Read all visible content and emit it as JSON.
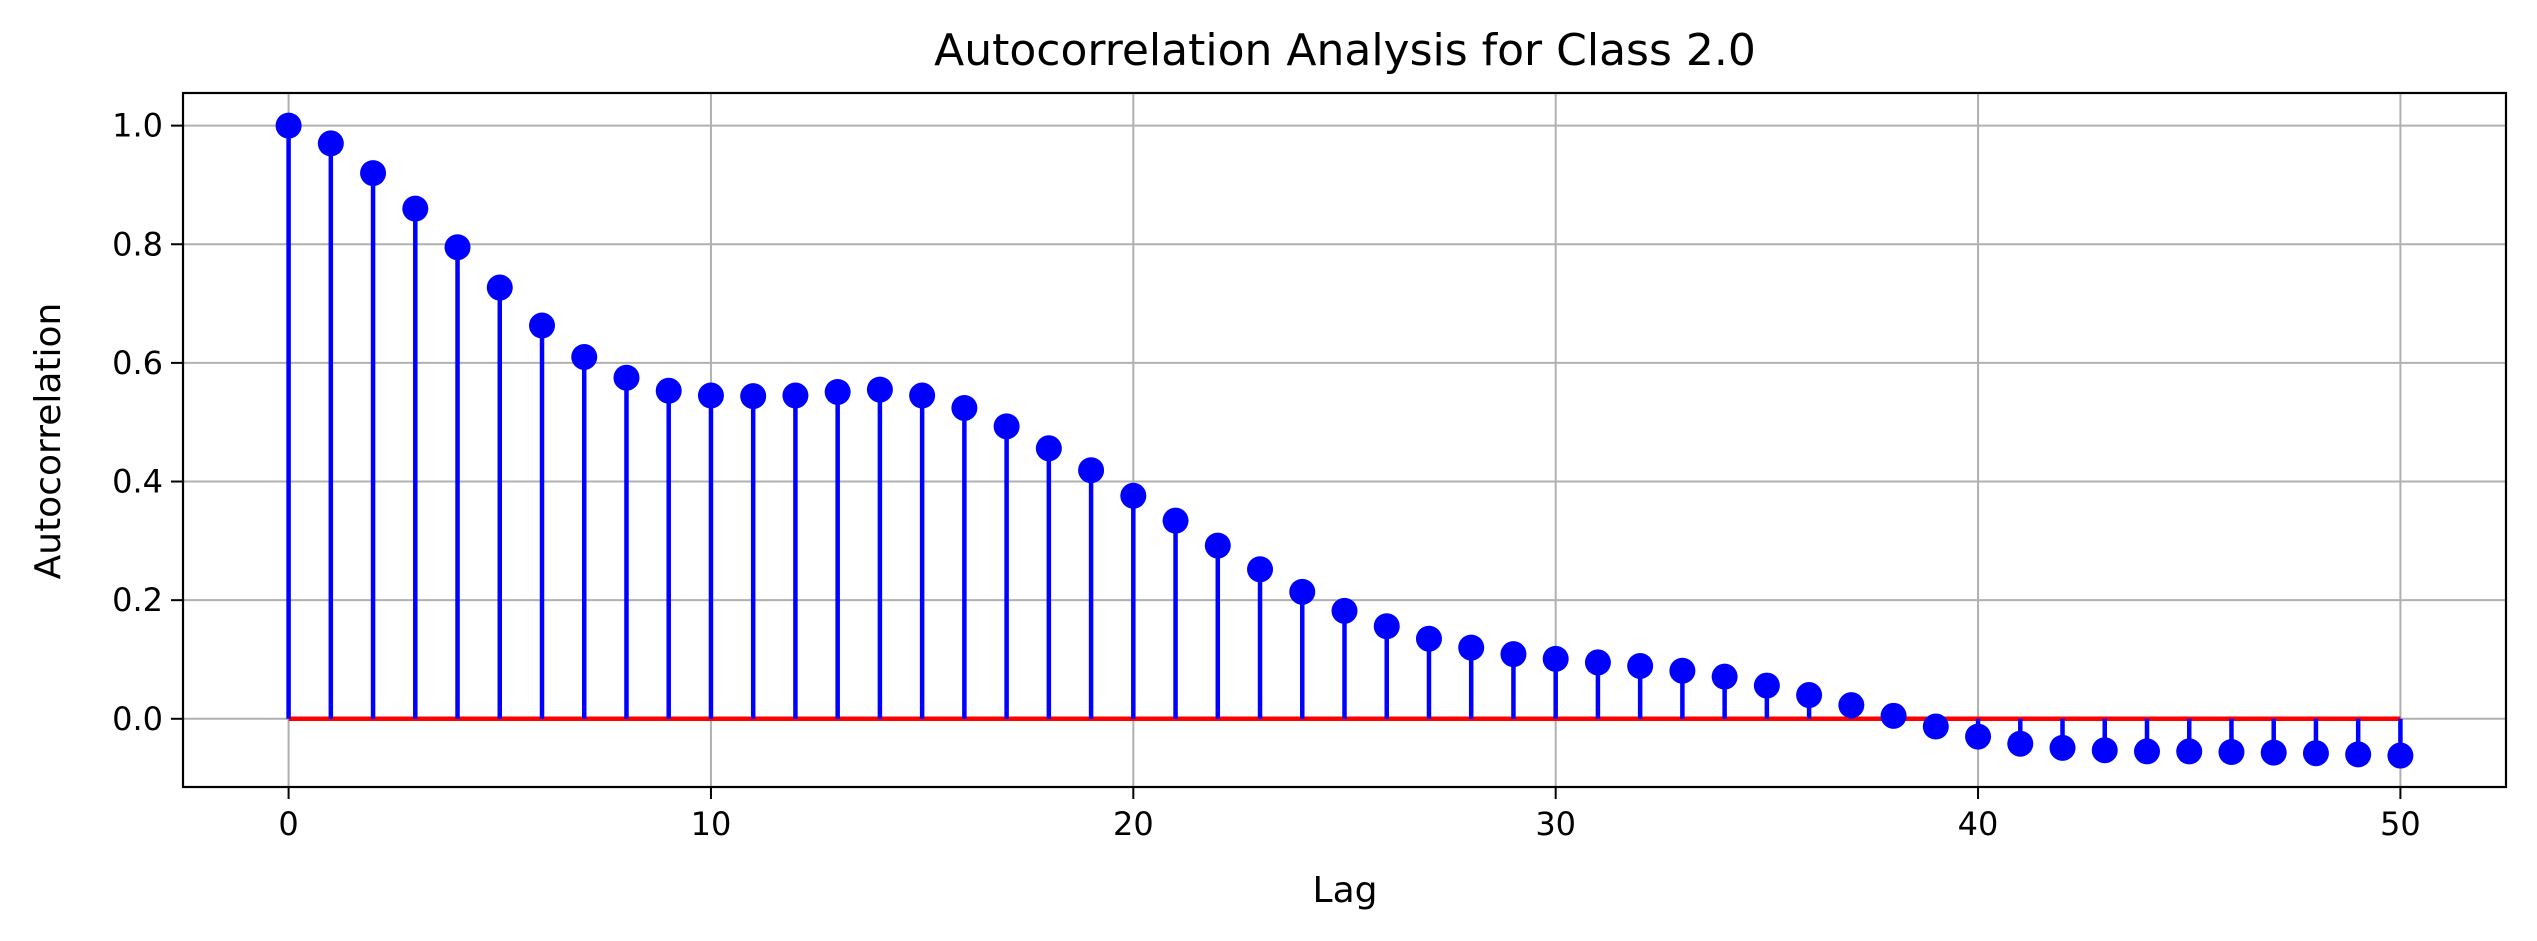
{
  "chart_data": {
    "type": "stem",
    "title": "Autocorrelation Analysis for Class 2.0",
    "xlabel": "Lag",
    "ylabel": "Autocorrelation",
    "xlim": [
      -2.5,
      52.5
    ],
    "ylim": [
      -0.115,
      1.055
    ],
    "xticks": [
      0,
      10,
      20,
      30,
      40,
      50
    ],
    "yticks": [
      0.0,
      0.2,
      0.4,
      0.6,
      0.8,
      1.0
    ],
    "grid": true,
    "marker_color": "#0000ff",
    "stem_color": "#0000ff",
    "baseline_color": "#ff0000",
    "x": [
      0,
      1,
      2,
      3,
      4,
      5,
      6,
      7,
      8,
      9,
      10,
      11,
      12,
      13,
      14,
      15,
      16,
      17,
      18,
      19,
      20,
      21,
      22,
      23,
      24,
      25,
      26,
      27,
      28,
      29,
      30,
      31,
      32,
      33,
      34,
      35,
      36,
      37,
      38,
      39,
      40,
      41,
      42,
      43,
      44,
      45,
      46,
      47,
      48,
      49,
      50
    ],
    "values": [
      1.0,
      0.97,
      0.92,
      0.86,
      0.795,
      0.727,
      0.663,
      0.61,
      0.575,
      0.553,
      0.545,
      0.544,
      0.545,
      0.551,
      0.555,
      0.545,
      0.524,
      0.493,
      0.456,
      0.419,
      0.376,
      0.334,
      0.292,
      0.252,
      0.214,
      0.182,
      0.156,
      0.135,
      0.12,
      0.109,
      0.101,
      0.095,
      0.089,
      0.081,
      0.071,
      0.056,
      0.04,
      0.023,
      0.005,
      -0.013,
      -0.03,
      -0.042,
      -0.049,
      -0.053,
      -0.055,
      -0.055,
      -0.056,
      -0.057,
      -0.058,
      -0.06,
      -0.062
    ]
  }
}
